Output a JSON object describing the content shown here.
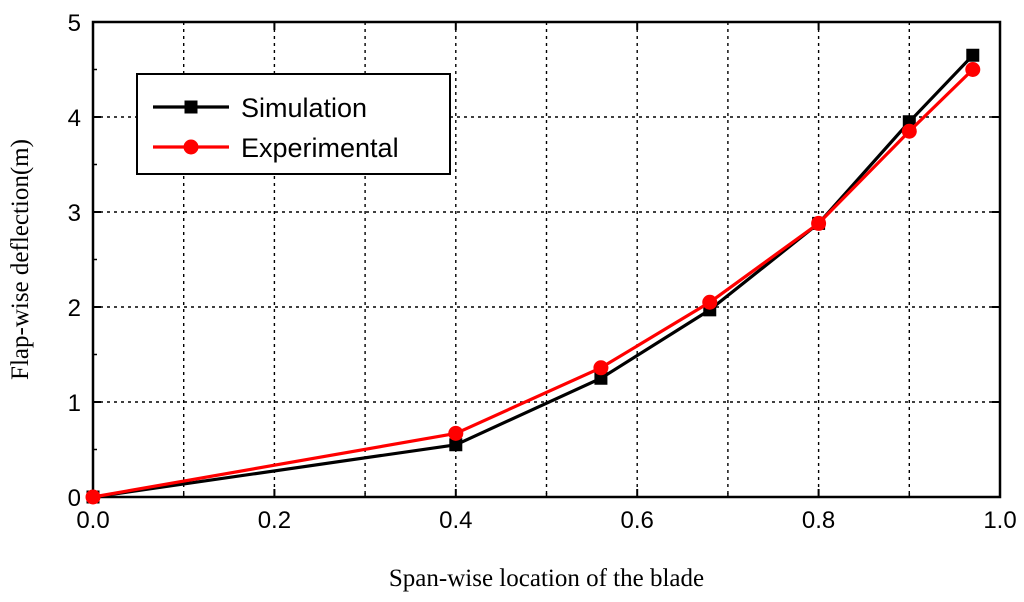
{
  "chart_data": {
    "type": "line",
    "title": "",
    "xlabel": "Span-wise location of the blade",
    "ylabel": "Flap-wise deflection(m)",
    "xlim": [
      0.0,
      1.0
    ],
    "ylim": [
      0,
      5
    ],
    "xticks": [
      "0.0",
      "0.2",
      "0.4",
      "0.6",
      "0.8",
      "1.0"
    ],
    "yticks": [
      "0",
      "1",
      "2",
      "3",
      "4",
      "5"
    ],
    "grid": true,
    "legend_position": "top-left",
    "series": [
      {
        "name": "Simulation",
        "color": "#000000",
        "marker": "square",
        "x": [
          0.0,
          0.4,
          0.56,
          0.68,
          0.8,
          0.9,
          0.97
        ],
        "y": [
          0.0,
          0.55,
          1.25,
          1.97,
          2.88,
          3.95,
          4.65
        ]
      },
      {
        "name": "Experimental",
        "color": "#ff0000",
        "marker": "circle",
        "x": [
          0.0,
          0.4,
          0.56,
          0.68,
          0.8,
          0.9,
          0.97
        ],
        "y": [
          0.0,
          0.67,
          1.36,
          2.05,
          2.88,
          3.85,
          4.5
        ]
      }
    ]
  }
}
